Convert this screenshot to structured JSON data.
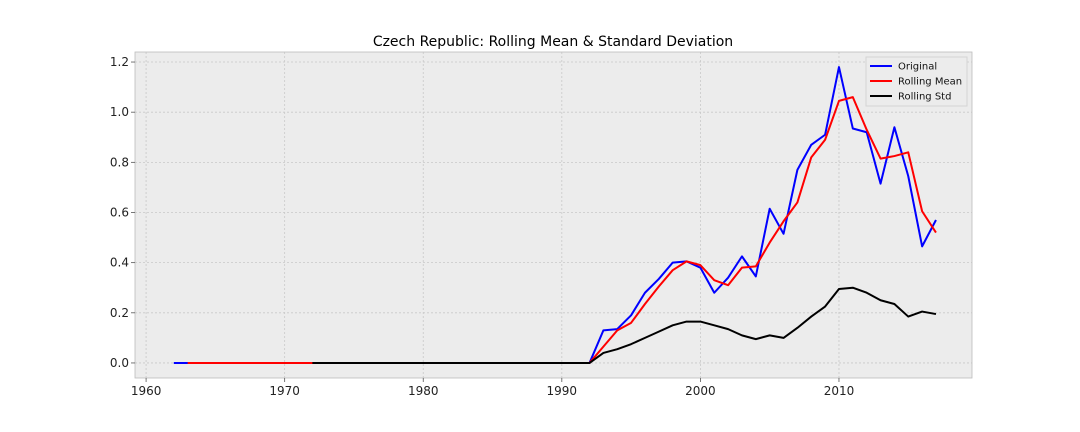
{
  "chart_data": {
    "type": "line",
    "title": "Czech Republic: Rolling Mean & Standard Deviation",
    "xlabel": "",
    "ylabel": "",
    "xlim": [
      1959.2,
      2019.6
    ],
    "ylim": [
      -0.06,
      1.24
    ],
    "xticks": [
      1960,
      1970,
      1980,
      1990,
      2000,
      2010
    ],
    "yticks": [
      0.0,
      0.2,
      0.4,
      0.6,
      0.8,
      1.0,
      1.2
    ],
    "xtick_labels": [
      "1960",
      "1970",
      "1980",
      "1990",
      "2000",
      "2010"
    ],
    "ytick_labels": [
      "0.0",
      "0.2",
      "0.4",
      "0.6",
      "0.8",
      "1.0",
      "1.2"
    ],
    "grid": true,
    "legend_position": "top-right",
    "series": [
      {
        "name": "Original",
        "color": "#0000ff",
        "points": [
          [
            1962,
            0.0
          ],
          [
            1963,
            0.0
          ],
          [
            1964,
            0.0
          ],
          [
            1965,
            0.0
          ],
          [
            1966,
            0.0
          ],
          [
            1967,
            0.0
          ],
          [
            1968,
            0.0
          ],
          [
            1969,
            0.0
          ],
          [
            1970,
            0.0
          ],
          [
            1971,
            0.0
          ],
          [
            1972,
            0.0
          ],
          [
            1973,
            0.0
          ],
          [
            1974,
            0.0
          ],
          [
            1975,
            0.0
          ],
          [
            1976,
            0.0
          ],
          [
            1977,
            0.0
          ],
          [
            1978,
            0.0
          ],
          [
            1979,
            0.0
          ],
          [
            1980,
            0.0
          ],
          [
            1981,
            0.0
          ],
          [
            1982,
            0.0
          ],
          [
            1983,
            0.0
          ],
          [
            1984,
            0.0
          ],
          [
            1985,
            0.0
          ],
          [
            1986,
            0.0
          ],
          [
            1987,
            0.0
          ],
          [
            1988,
            0.0
          ],
          [
            1989,
            0.0
          ],
          [
            1990,
            0.0
          ],
          [
            1991,
            0.0
          ],
          [
            1992,
            0.0
          ],
          [
            1993,
            0.13
          ],
          [
            1994,
            0.135
          ],
          [
            1995,
            0.19
          ],
          [
            1996,
            0.28
          ],
          [
            1997,
            0.335
          ],
          [
            1998,
            0.4
          ],
          [
            1999,
            0.405
          ],
          [
            2000,
            0.38
          ],
          [
            2001,
            0.28
          ],
          [
            2002,
            0.34
          ],
          [
            2003,
            0.425
          ],
          [
            2004,
            0.345
          ],
          [
            2005,
            0.615
          ],
          [
            2006,
            0.515
          ],
          [
            2007,
            0.77
          ],
          [
            2008,
            0.87
          ],
          [
            2009,
            0.91
          ],
          [
            2010,
            1.18
          ],
          [
            2011,
            0.935
          ],
          [
            2012,
            0.92
          ],
          [
            2013,
            0.715
          ],
          [
            2014,
            0.94
          ],
          [
            2015,
            0.745
          ],
          [
            2016,
            0.465
          ],
          [
            2017,
            0.57
          ]
        ]
      },
      {
        "name": "Rolling Mean",
        "color": "#ff0000",
        "points": [
          [
            1963,
            0.0
          ],
          [
            1964,
            0.0
          ],
          [
            1965,
            0.0
          ],
          [
            1966,
            0.0
          ],
          [
            1967,
            0.0
          ],
          [
            1968,
            0.0
          ],
          [
            1969,
            0.0
          ],
          [
            1970,
            0.0
          ],
          [
            1971,
            0.0
          ],
          [
            1972,
            0.0
          ],
          [
            1973,
            0.0
          ],
          [
            1974,
            0.0
          ],
          [
            1975,
            0.0
          ],
          [
            1976,
            0.0
          ],
          [
            1977,
            0.0
          ],
          [
            1978,
            0.0
          ],
          [
            1979,
            0.0
          ],
          [
            1980,
            0.0
          ],
          [
            1981,
            0.0
          ],
          [
            1982,
            0.0
          ],
          [
            1983,
            0.0
          ],
          [
            1984,
            0.0
          ],
          [
            1985,
            0.0
          ],
          [
            1986,
            0.0
          ],
          [
            1987,
            0.0
          ],
          [
            1988,
            0.0
          ],
          [
            1989,
            0.0
          ],
          [
            1990,
            0.0
          ],
          [
            1991,
            0.0
          ],
          [
            1992,
            0.0
          ],
          [
            1993,
            0.065
          ],
          [
            1994,
            0.13
          ],
          [
            1995,
            0.16
          ],
          [
            1996,
            0.235
          ],
          [
            1997,
            0.305
          ],
          [
            1998,
            0.37
          ],
          [
            1999,
            0.405
          ],
          [
            2000,
            0.39
          ],
          [
            2001,
            0.33
          ],
          [
            2002,
            0.31
          ],
          [
            2003,
            0.38
          ],
          [
            2004,
            0.385
          ],
          [
            2005,
            0.48
          ],
          [
            2006,
            0.565
          ],
          [
            2007,
            0.64
          ],
          [
            2008,
            0.82
          ],
          [
            2009,
            0.89
          ],
          [
            2010,
            1.045
          ],
          [
            2011,
            1.06
          ],
          [
            2012,
            0.93
          ],
          [
            2013,
            0.815
          ],
          [
            2014,
            0.825
          ],
          [
            2015,
            0.84
          ],
          [
            2016,
            0.605
          ],
          [
            2017,
            0.52
          ]
        ]
      },
      {
        "name": "Rolling Std",
        "color": "#000000",
        "points": [
          [
            1972,
            0.0
          ],
          [
            1973,
            0.0
          ],
          [
            1974,
            0.0
          ],
          [
            1975,
            0.0
          ],
          [
            1976,
            0.0
          ],
          [
            1977,
            0.0
          ],
          [
            1978,
            0.0
          ],
          [
            1979,
            0.0
          ],
          [
            1980,
            0.0
          ],
          [
            1981,
            0.0
          ],
          [
            1982,
            0.0
          ],
          [
            1983,
            0.0
          ],
          [
            1984,
            0.0
          ],
          [
            1985,
            0.0
          ],
          [
            1986,
            0.0
          ],
          [
            1987,
            0.0
          ],
          [
            1988,
            0.0
          ],
          [
            1989,
            0.0
          ],
          [
            1990,
            0.0
          ],
          [
            1991,
            0.0
          ],
          [
            1992,
            0.0
          ],
          [
            1993,
            0.04
          ],
          [
            1994,
            0.055
          ],
          [
            1995,
            0.075
          ],
          [
            1996,
            0.1
          ],
          [
            1997,
            0.125
          ],
          [
            1998,
            0.15
          ],
          [
            1999,
            0.165
          ],
          [
            2000,
            0.165
          ],
          [
            2001,
            0.15
          ],
          [
            2002,
            0.135
          ],
          [
            2003,
            0.11
          ],
          [
            2004,
            0.095
          ],
          [
            2005,
            0.11
          ],
          [
            2006,
            0.1
          ],
          [
            2007,
            0.14
          ],
          [
            2008,
            0.185
          ],
          [
            2009,
            0.225
          ],
          [
            2010,
            0.295
          ],
          [
            2011,
            0.3
          ],
          [
            2012,
            0.28
          ],
          [
            2013,
            0.25
          ],
          [
            2014,
            0.235
          ],
          [
            2015,
            0.185
          ],
          [
            2016,
            0.205
          ],
          [
            2017,
            0.195
          ]
        ]
      }
    ]
  },
  "style": {
    "plot_background": "#ececec",
    "grid_color": "#c8c8c8",
    "axis_line_color": "#bcbcbc"
  }
}
